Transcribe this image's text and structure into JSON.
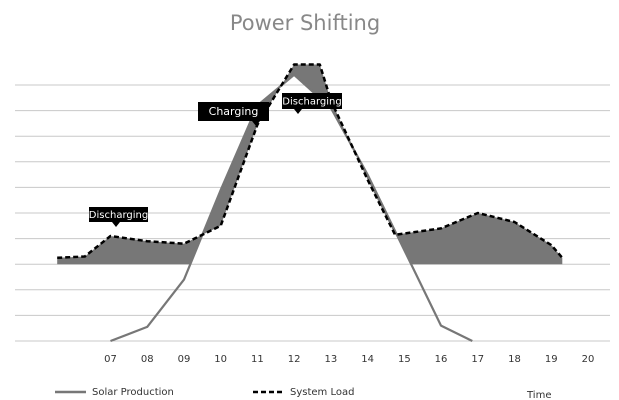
{
  "chart_data": {
    "type": "line",
    "title": "Power Shifting",
    "x_label": "Time",
    "xlim": [
      4.4,
      20.6
    ],
    "xticks": [
      {
        "value": 7,
        "label": "07"
      },
      {
        "value": 8,
        "label": "08"
      },
      {
        "value": 9,
        "label": "09"
      },
      10,
      11,
      12,
      13,
      14,
      15,
      16,
      17,
      18,
      19,
      20
    ],
    "ylim": [
      0,
      10
    ],
    "yticks": [
      0,
      1,
      2,
      3,
      4,
      5,
      6,
      7,
      8,
      9,
      10
    ],
    "grid": true,
    "fill_baseline": 3,
    "fill_color": "#777777",
    "series": [
      {
        "name": "Solar Production",
        "color": "#777777",
        "dash": false,
        "x": [
          7,
          8,
          9,
          10,
          11,
          12,
          13,
          14,
          15,
          16,
          16.85
        ],
        "values": [
          0,
          0.55,
          2.4,
          5.9,
          9.2,
          10.4,
          9.1,
          6.5,
          3.55,
          0.6,
          0
        ]
      },
      {
        "name": "System Load",
        "color": "#000000",
        "dash": true,
        "x": [
          5.55,
          6.3,
          7,
          8,
          9,
          10,
          11,
          12,
          12.7,
          13,
          14,
          14.75,
          16,
          17,
          18,
          19,
          19.3
        ],
        "values": [
          3.25,
          3.3,
          4.1,
          3.9,
          3.8,
          4.5,
          8.45,
          10.8,
          10.8,
          9.4,
          6.3,
          4.15,
          4.4,
          5.0,
          4.65,
          3.75,
          3.25
        ]
      }
    ],
    "annotations": [
      "Discharging",
      "Charging",
      "Discharging"
    ]
  }
}
